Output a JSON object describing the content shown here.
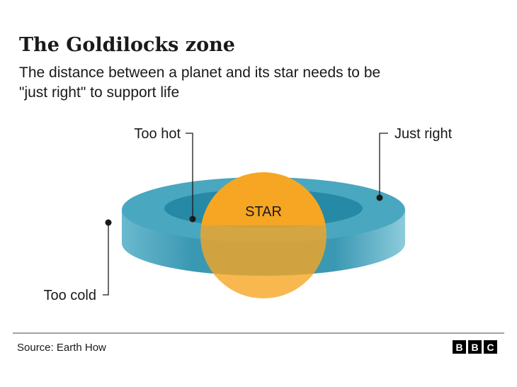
{
  "header": {
    "title": "The Goldilocks zone",
    "subtitle": [
      "The distance between a planet and its star needs to be",
      "\"just right\" to support life"
    ]
  },
  "labels": {
    "too_hot": "Too hot",
    "just_right": "Just right",
    "too_cold": "Too cold",
    "star": "STAR"
  },
  "footer": {
    "source": "Source: Earth How",
    "logo": [
      "B",
      "B",
      "C"
    ]
  }
}
